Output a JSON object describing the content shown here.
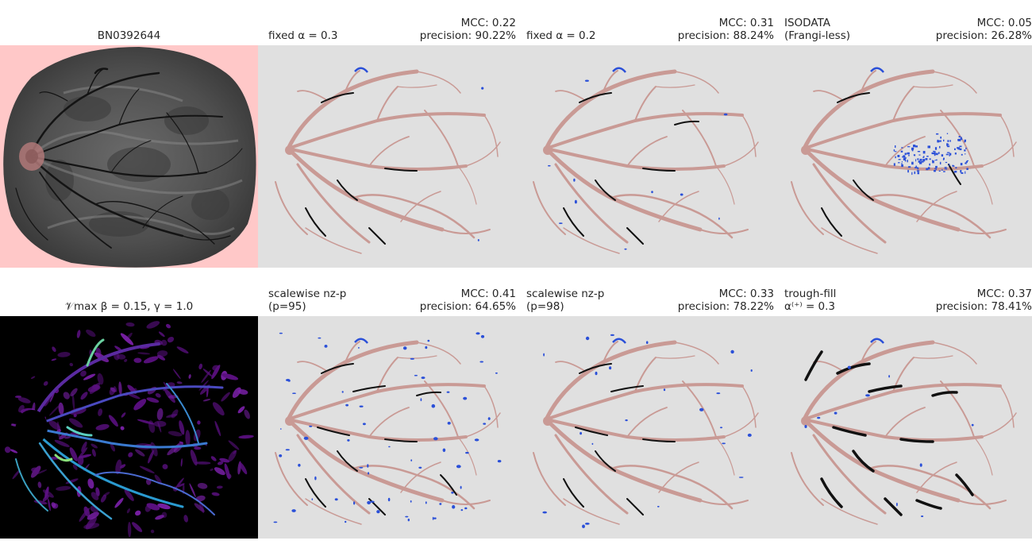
{
  "rows": [
    {
      "panels": [
        {
          "kind": "original",
          "title": "BN0392644",
          "background": "#ffc8c8"
        },
        {
          "kind": "seg",
          "title_left": "fixed α = 0.3",
          "mcc": "MCC: 0.22",
          "precision": "precision: 90.22%",
          "extra": "none"
        },
        {
          "kind": "seg",
          "title_left": "fixed α = 0.2",
          "mcc": "MCC: 0.31",
          "precision": "precision: 88.24%",
          "extra": "few"
        },
        {
          "kind": "seg",
          "title_left": "ISODATA\n(Frangi-less)",
          "mcc": "MCC: 0.05",
          "precision": "precision: 26.28%",
          "extra": "cluster"
        }
      ]
    },
    {
      "panels": [
        {
          "kind": "vesselness",
          "title": "𝒱max  β = 0.15, γ = 1.0",
          "background": "#000000"
        },
        {
          "kind": "seg",
          "title_left": "scalewise nz-p\n(p=95)",
          "mcc": "MCC: 0.41",
          "precision": "precision: 64.65%",
          "extra": "scatter"
        },
        {
          "kind": "seg",
          "title_left": "scalewise nz-p\n(p=98)",
          "mcc": "MCC: 0.33",
          "precision": "precision: 78.22%",
          "extra": "some"
        },
        {
          "kind": "seg",
          "title_left": "trough-fill\n  α⁽⁺⁾ = 0.3",
          "mcc": "MCC: 0.37",
          "precision": "precision: 78.41%",
          "extra": "thick"
        }
      ]
    }
  ],
  "colors": {
    "panel_bg": "#e0e0e0",
    "vessel_truth": "#c99a95",
    "true_positive": "#111111",
    "false_positive": "#2b50d8",
    "title_text": "#262626"
  }
}
